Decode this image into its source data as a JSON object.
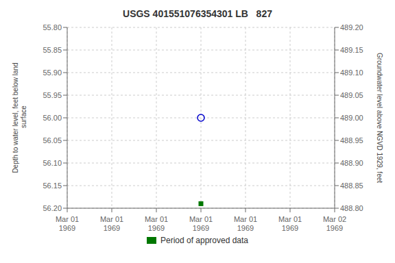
{
  "chart_data": {
    "type": "scatter",
    "title": "USGS 401551076354301 LB   827",
    "ylabel": "Depth to water level, feet below land\n surface",
    "y2label": "Groundwater level above NGVD 1929, feet",
    "categories": [
      "Mar 01\n1969",
      "Mar 01\n1969",
      "Mar 01\n1969",
      "Mar 01\n1969",
      "Mar 01\n1969",
      "Mar 01\n1969",
      "Mar 02\n1969"
    ],
    "series": [
      {
        "color": "#0000cc",
        "marker": "open_circle",
        "values": [
          null,
          null,
          null,
          56.0,
          null,
          null,
          null
        ]
      },
      {
        "name": "Period of approved data",
        "color": "#007700",
        "marker": "square",
        "values": [
          null,
          null,
          null,
          56.19,
          null,
          null,
          null
        ]
      }
    ],
    "ylim": [
      56.2,
      55.8
    ],
    "yticks": [
      {
        "value": 55.8,
        "label": "55.80"
      },
      {
        "value": 55.85,
        "label": "55.85"
      },
      {
        "value": 55.9,
        "label": "55.90"
      },
      {
        "value": 55.95,
        "label": "55.95"
      },
      {
        "value": 56.0,
        "label": "56.00"
      },
      {
        "value": 56.05,
        "label": "56.05"
      },
      {
        "value": 56.1,
        "label": "56.10"
      },
      {
        "value": 56.15,
        "label": "56.15"
      },
      {
        "value": 56.2,
        "label": "56.20"
      }
    ],
    "y2lim": [
      488.8,
      489.2
    ],
    "y2ticks": [
      {
        "value": 489.2,
        "label": "489.20"
      },
      {
        "value": 489.15,
        "label": "489.15"
      },
      {
        "value": 489.1,
        "label": "489.10"
      },
      {
        "value": 489.05,
        "label": "489.05"
      },
      {
        "value": 489.0,
        "label": "489.00"
      },
      {
        "value": 488.95,
        "label": "488.95"
      },
      {
        "value": 488.9,
        "label": "488.90"
      },
      {
        "value": 488.85,
        "label": "488.85"
      },
      {
        "value": 488.8,
        "label": "488.80"
      }
    ],
    "grid": true,
    "legend": "bottom"
  }
}
